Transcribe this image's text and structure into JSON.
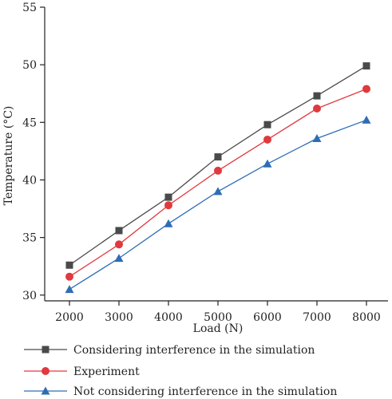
{
  "chart_data": {
    "type": "line",
    "title": "",
    "xlabel": "Load (N)",
    "ylabel": "Temperature (°C)",
    "x": [
      2000,
      3000,
      4000,
      5000,
      6000,
      7000,
      8000
    ],
    "xticks": [
      "2000",
      "3000",
      "4000",
      "5000",
      "6000",
      "7000",
      "8000"
    ],
    "yticks": [
      "30",
      "35",
      "40",
      "45",
      "50",
      "55"
    ],
    "ylim": [
      29.5,
      55
    ],
    "grid": false,
    "legend_position": "bottom",
    "series": [
      {
        "name": "Considering interference in the simulation",
        "color": "#4a4a4a",
        "marker": "square",
        "values": [
          32.6,
          35.6,
          38.5,
          42.0,
          44.8,
          47.3,
          49.9
        ]
      },
      {
        "name": "Experiment",
        "color": "#e0393e",
        "marker": "circle",
        "values": [
          31.6,
          34.4,
          37.8,
          40.8,
          43.5,
          46.2,
          47.9
        ]
      },
      {
        "name": "Not considering interference in the simulation",
        "color": "#2e6db5",
        "marker": "triangle",
        "values": [
          30.5,
          33.2,
          36.2,
          39.0,
          41.4,
          43.6,
          45.2
        ]
      }
    ]
  }
}
